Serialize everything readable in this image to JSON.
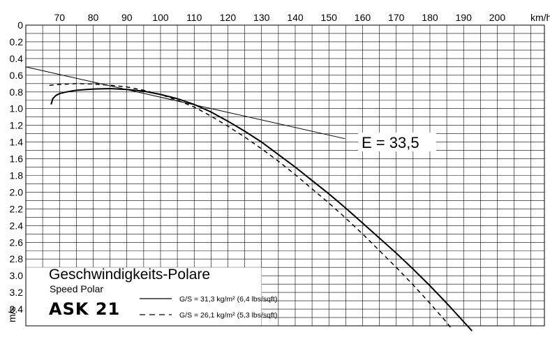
{
  "chart_data": {
    "type": "line",
    "title": "Geschwindigkeits-Polare",
    "subtitle": "Speed Polar",
    "model": "ASK 21",
    "xlabel": "km/h",
    "ylabel": "m/s",
    "x_ticks": [
      "70",
      "80",
      "90",
      "100",
      "110",
      "120",
      "130",
      "140",
      "150",
      "160",
      "170",
      "180",
      "190",
      "200"
    ],
    "y_ticks": [
      "0",
      "0.2",
      "0.4",
      "0.6",
      "0.8",
      "1.0",
      "1.2",
      "1.4",
      "1.6",
      "1.8",
      "2.0",
      "2.2",
      "2.4",
      "2.6",
      "2.8",
      "3.0",
      "3.2",
      "3.4"
    ],
    "xlim": [
      60,
      214
    ],
    "ylim": [
      0,
      3.6
    ],
    "y_inverted": true,
    "grid": true,
    "legend_position": "bottom-left",
    "series": [
      {
        "name": "G/S = 31,3 kg/m² (6,4  lbs/sqft)",
        "style": "solid",
        "x": [
          67.5,
          68,
          69,
          70,
          72,
          75,
          80,
          85,
          90,
          95,
          100,
          105,
          110,
          115,
          120,
          125,
          130,
          135,
          140,
          145,
          150,
          155,
          160,
          165,
          170,
          175,
          180,
          185,
          190,
          192.5
        ],
        "y": [
          0.95,
          0.88,
          0.84,
          0.82,
          0.8,
          0.78,
          0.765,
          0.76,
          0.77,
          0.79,
          0.83,
          0.88,
          0.95,
          1.04,
          1.15,
          1.27,
          1.4,
          1.55,
          1.7,
          1.86,
          2.02,
          2.19,
          2.37,
          2.55,
          2.73,
          2.92,
          3.12,
          3.33,
          3.55,
          3.66
        ]
      },
      {
        "name": "G/S = 26,1 kg/m² (5,3  lbs/sqft)",
        "style": "dashed",
        "x": [
          67,
          70,
          75,
          80,
          85,
          90,
          95,
          100,
          105,
          110,
          115,
          120,
          125,
          130,
          135,
          140,
          145,
          150,
          155,
          160,
          165,
          170,
          175,
          180,
          185,
          186.5
        ],
        "y": [
          0.72,
          0.71,
          0.7,
          0.705,
          0.72,
          0.74,
          0.78,
          0.83,
          0.9,
          0.98,
          1.09,
          1.21,
          1.34,
          1.48,
          1.63,
          1.79,
          1.96,
          2.13,
          2.31,
          2.5,
          2.7,
          2.9,
          3.11,
          3.33,
          3.56,
          3.64
        ]
      }
    ],
    "annotation": {
      "label": "E = 33,5",
      "tangent_from": [
        60,
        0.5
      ],
      "tangent_to": [
        154.8,
        1.36
      ]
    }
  }
}
